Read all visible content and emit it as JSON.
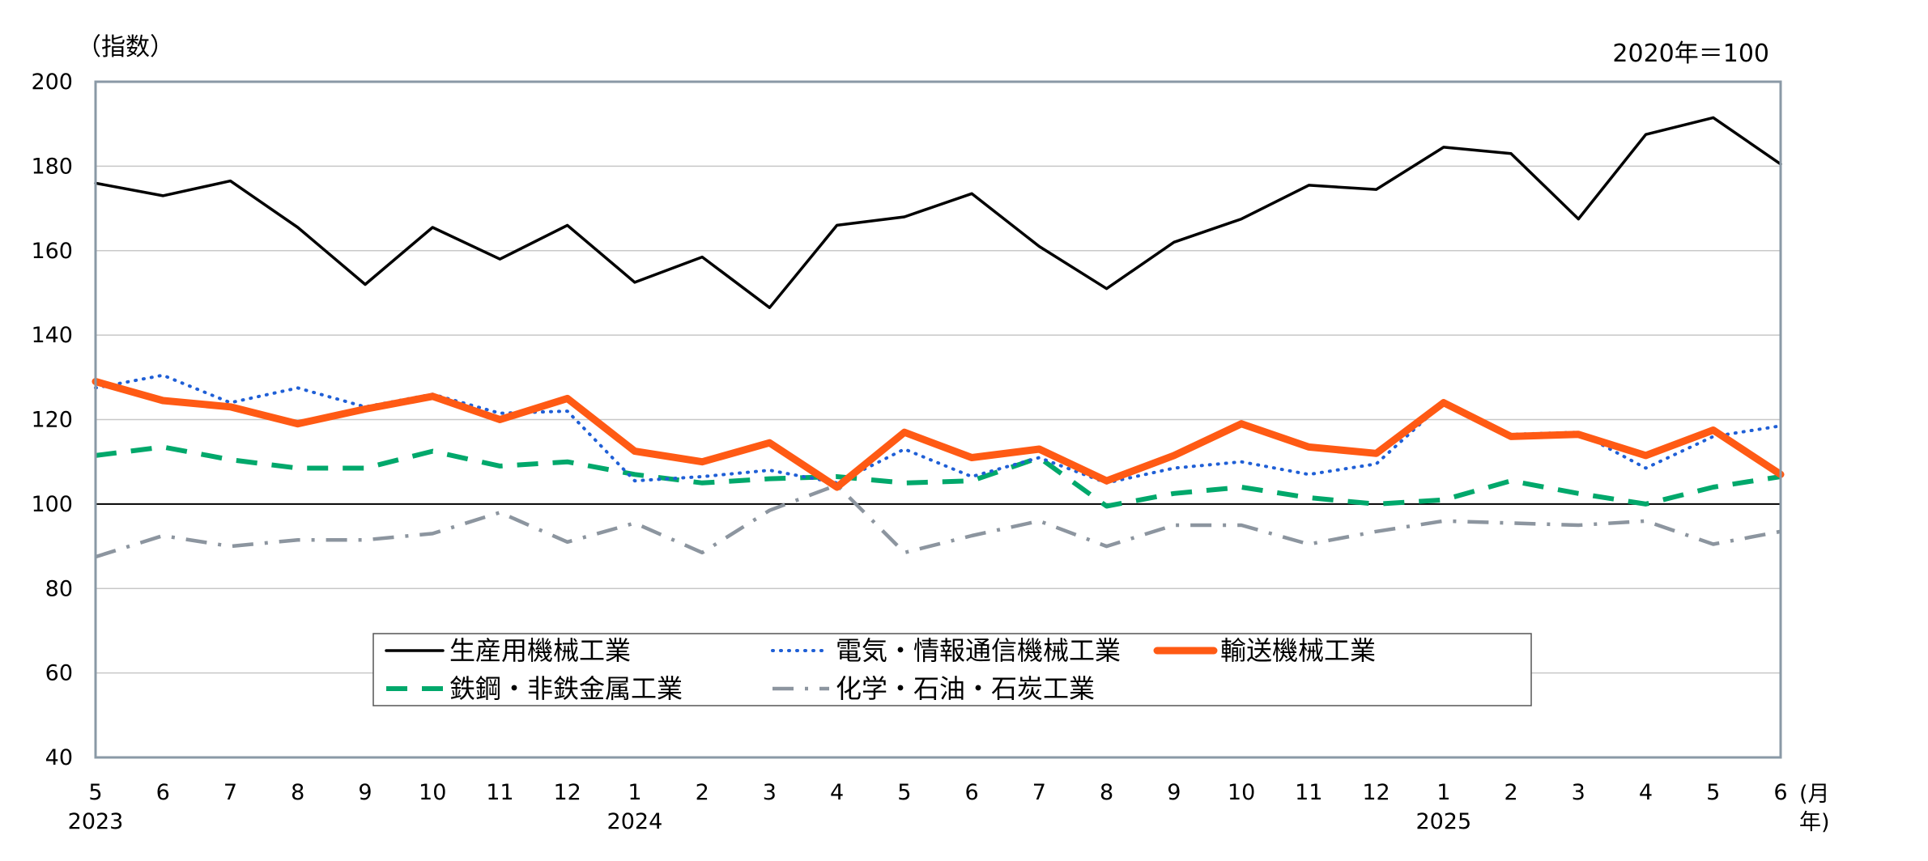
{
  "chart_data": {
    "type": "line",
    "y_unit_label": "（指数）",
    "base_note": "2020年＝100",
    "x_unit_label_month": "(月",
    "x_unit_label_year": "年)",
    "ylim": [
      40,
      200
    ],
    "y_ticks": [
      40,
      60,
      80,
      100,
      120,
      140,
      160,
      180,
      200
    ],
    "reference_line": 100,
    "categories": [
      "5",
      "6",
      "7",
      "8",
      "9",
      "10",
      "11",
      "12",
      "1",
      "2",
      "3",
      "4",
      "5",
      "6",
      "7",
      "8",
      "9",
      "10",
      "11",
      "12",
      "1",
      "2",
      "3",
      "4",
      "5",
      "6"
    ],
    "year_labels": [
      {
        "index": 0,
        "label": "2023"
      },
      {
        "index": 8,
        "label": "2024"
      },
      {
        "index": 20,
        "label": "2025"
      }
    ],
    "series": [
      {
        "name": "生産用機械工業",
        "color": "#000000",
        "style": "solid",
        "values": [
          176,
          173,
          176.5,
          165.5,
          152,
          165.5,
          158,
          166,
          152.5,
          158.5,
          146.5,
          166,
          168,
          173.5,
          161,
          151,
          162,
          167.5,
          175.5,
          174.5,
          184.5,
          183,
          167.5,
          187.5,
          191.5,
          180.5
        ]
      },
      {
        "name": "電気・情報通信機械工業",
        "color": "#1f5fd6",
        "style": "dotted",
        "values": [
          127.5,
          130.5,
          124,
          127.5,
          123,
          126,
          121.5,
          122,
          105.5,
          106.5,
          108,
          105,
          113,
          106.5,
          111,
          105,
          108.5,
          110,
          107,
          109.5,
          124,
          116.5,
          117,
          108.5,
          116,
          118.5
        ]
      },
      {
        "name": "輸送機械工業",
        "color": "#ff5a14",
        "style": "thick",
        "values": [
          129,
          124.5,
          123,
          119,
          122.5,
          125.5,
          120,
          125,
          112.5,
          110,
          114.5,
          104,
          117,
          111,
          113,
          105.5,
          111.5,
          119,
          113.5,
          112,
          124,
          116,
          116.5,
          111.5,
          117.5,
          107
        ]
      },
      {
        "name": "鉄鋼・非鉄金属工業",
        "color": "#00a86b",
        "style": "dashed",
        "values": [
          111.5,
          113.5,
          110.5,
          108.5,
          108.5,
          112.5,
          109,
          110,
          107,
          105,
          106,
          106.5,
          105,
          105.5,
          111,
          99.5,
          102.5,
          104,
          101.5,
          100,
          101,
          105.5,
          102.5,
          100,
          104,
          106.5
        ]
      },
      {
        "name": "化学・石油・石炭工業",
        "color": "#8c959f",
        "style": "dashdot",
        "values": [
          87.5,
          92.5,
          90,
          91.5,
          91.5,
          93,
          98,
          91,
          95.5,
          88.5,
          98.5,
          104.5,
          88.5,
          92.5,
          96,
          90,
          95,
          95,
          90.5,
          93.5,
          96,
          95.5,
          95,
          96,
          90.5,
          93.5
        ]
      }
    ]
  }
}
